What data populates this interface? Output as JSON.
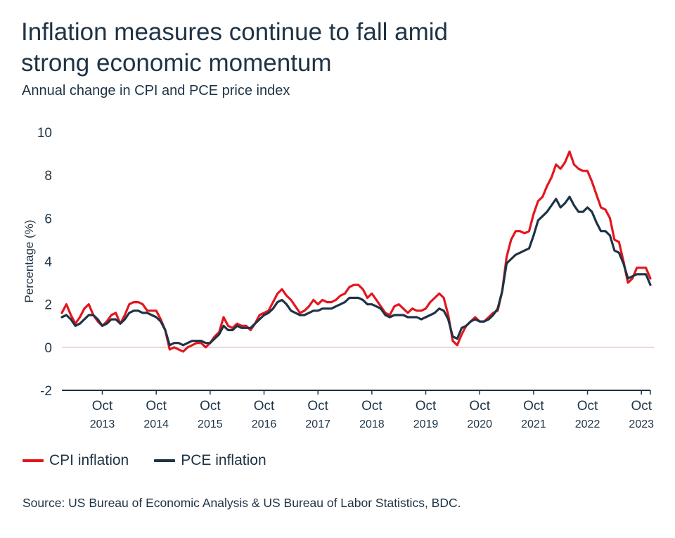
{
  "title_line1": "Inflation measures continue to fall amid",
  "title_line2": "strong economic momentum",
  "subtitle": "Annual change in CPI and PCE price index",
  "source": "Source: US Bureau of Economic Analysis & US Bureau of Labor Statistics, BDC.",
  "colors": {
    "cpi": "#e3161e",
    "pce": "#1e3345",
    "zero_line": "#e8c7c9",
    "axis": "#1e3345"
  },
  "chart_data": {
    "type": "line",
    "title": "Inflation measures continue to fall amid strong economic momentum",
    "subtitle": "Annual change in CPI and PCE price index",
    "ylabel": "Percentage (%)",
    "xlabel": "",
    "ylim": [
      -2,
      10
    ],
    "yticks": [
      -2,
      0,
      2,
      4,
      6,
      8,
      10
    ],
    "xlim": [
      "2013-01",
      "2023-12"
    ],
    "xticks": [
      {
        "month": "2013-10",
        "line1": "Oct",
        "line2": "2013"
      },
      {
        "month": "2014-10",
        "line1": "Oct",
        "line2": "2014"
      },
      {
        "month": "2015-10",
        "line1": "Oct",
        "line2": "2015"
      },
      {
        "month": "2016-10",
        "line1": "Oct",
        "line2": "2016"
      },
      {
        "month": "2017-10",
        "line1": "Oct",
        "line2": "2017"
      },
      {
        "month": "2018-10",
        "line1": "Oct",
        "line2": "2018"
      },
      {
        "month": "2019-10",
        "line1": "Oct",
        "line2": "2019"
      },
      {
        "month": "2020-10",
        "line1": "Oct",
        "line2": "2020"
      },
      {
        "month": "2021-10",
        "line1": "Oct",
        "line2": "2021"
      },
      {
        "month": "2022-10",
        "line1": "Oct",
        "line2": "2022"
      },
      {
        "month": "2023-10",
        "line1": "Oct",
        "line2": "2023"
      }
    ],
    "legend_position": "bottom-left",
    "grid": false,
    "series": [
      {
        "name": "CPI inflation",
        "color": "#e3161e",
        "start": "2013-01",
        "values": [
          1.6,
          2.0,
          1.5,
          1.1,
          1.4,
          1.8,
          2.0,
          1.5,
          1.2,
          1.0,
          1.2,
          1.5,
          1.6,
          1.1,
          1.5,
          2.0,
          2.1,
          2.1,
          2.0,
          1.7,
          1.7,
          1.7,
          1.3,
          0.8,
          -0.1,
          0.0,
          -0.1,
          -0.2,
          0.0,
          0.1,
          0.2,
          0.2,
          0.0,
          0.2,
          0.5,
          0.7,
          1.4,
          1.0,
          0.9,
          1.1,
          1.0,
          1.0,
          0.8,
          1.1,
          1.5,
          1.6,
          1.7,
          2.1,
          2.5,
          2.7,
          2.4,
          2.2,
          1.9,
          1.6,
          1.7,
          1.9,
          2.2,
          2.0,
          2.2,
          2.1,
          2.1,
          2.2,
          2.4,
          2.5,
          2.8,
          2.9,
          2.9,
          2.7,
          2.3,
          2.5,
          2.2,
          1.9,
          1.6,
          1.5,
          1.9,
          2.0,
          1.8,
          1.6,
          1.8,
          1.7,
          1.7,
          1.8,
          2.1,
          2.3,
          2.5,
          2.3,
          1.5,
          0.3,
          0.1,
          0.6,
          1.0,
          1.2,
          1.4,
          1.2,
          1.2,
          1.4,
          1.6,
          1.7,
          2.6,
          4.2,
          5.0,
          5.4,
          5.4,
          5.3,
          5.4,
          6.2,
          6.8,
          7.0,
          7.5,
          7.9,
          8.5,
          8.3,
          8.6,
          9.1,
          8.5,
          8.3,
          8.2,
          8.2,
          7.7,
          7.1,
          6.5,
          6.4,
          6.0,
          5.0,
          4.9,
          4.0,
          3.0,
          3.2,
          3.7,
          3.7,
          3.7,
          3.2
        ]
      },
      {
        "name": "PCE inflation",
        "color": "#1e3345",
        "start": "2013-01",
        "values": [
          1.4,
          1.5,
          1.3,
          1.0,
          1.1,
          1.3,
          1.5,
          1.5,
          1.3,
          1.0,
          1.1,
          1.3,
          1.3,
          1.1,
          1.3,
          1.6,
          1.7,
          1.7,
          1.6,
          1.6,
          1.5,
          1.4,
          1.2,
          0.8,
          0.1,
          0.2,
          0.2,
          0.1,
          0.2,
          0.3,
          0.3,
          0.3,
          0.2,
          0.2,
          0.4,
          0.6,
          1.0,
          0.8,
          0.8,
          1.0,
          0.9,
          0.9,
          0.9,
          1.1,
          1.3,
          1.5,
          1.6,
          1.8,
          2.1,
          2.2,
          2.0,
          1.7,
          1.6,
          1.5,
          1.5,
          1.6,
          1.7,
          1.7,
          1.8,
          1.8,
          1.8,
          1.9,
          2.0,
          2.1,
          2.3,
          2.3,
          2.3,
          2.2,
          2.0,
          2.0,
          1.9,
          1.8,
          1.5,
          1.4,
          1.5,
          1.5,
          1.5,
          1.4,
          1.4,
          1.4,
          1.3,
          1.4,
          1.5,
          1.6,
          1.8,
          1.7,
          1.3,
          0.5,
          0.4,
          0.9,
          1.0,
          1.2,
          1.3,
          1.2,
          1.2,
          1.3,
          1.5,
          1.8,
          2.6,
          3.9,
          4.1,
          4.3,
          4.4,
          4.5,
          4.6,
          5.2,
          5.9,
          6.1,
          6.3,
          6.6,
          6.9,
          6.5,
          6.7,
          7.0,
          6.6,
          6.3,
          6.3,
          6.5,
          6.3,
          5.8,
          5.4,
          5.4,
          5.2,
          4.5,
          4.4,
          3.9,
          3.2,
          3.3,
          3.4,
          3.4,
          3.4,
          2.9
        ]
      }
    ]
  }
}
